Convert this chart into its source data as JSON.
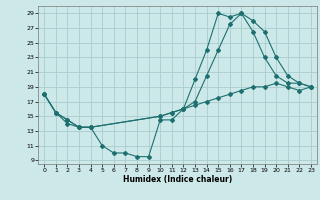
{
  "xlabel": "Humidex (Indice chaleur)",
  "bg_color": "#cde8e8",
  "grid_color": "#a8cccc",
  "line_color": "#1e7070",
  "xlim": [
    -0.5,
    23.5
  ],
  "ylim": [
    8.5,
    30
  ],
  "xticks": [
    0,
    1,
    2,
    3,
    4,
    5,
    6,
    7,
    8,
    9,
    10,
    11,
    12,
    13,
    14,
    15,
    16,
    17,
    18,
    19,
    20,
    21,
    22,
    23
  ],
  "yticks": [
    9,
    11,
    13,
    15,
    17,
    19,
    21,
    23,
    25,
    27,
    29
  ],
  "line1_x": [
    0,
    1,
    2,
    3,
    4,
    5,
    6,
    7,
    8,
    9,
    10,
    11,
    12,
    13,
    14,
    15,
    16,
    17,
    18,
    19,
    20,
    21,
    22,
    23
  ],
  "line1_y": [
    18,
    15.5,
    14,
    13.5,
    13.5,
    11,
    10,
    10,
    9.5,
    9.5,
    14.5,
    14.5,
    16,
    20,
    24,
    29,
    28.5,
    29,
    26.5,
    23,
    20.5,
    19.5,
    19.5,
    19
  ],
  "line2_x": [
    0,
    1,
    2,
    3,
    4,
    10,
    11,
    12,
    13,
    14,
    15,
    16,
    17,
    18,
    19,
    20,
    21,
    22,
    23
  ],
  "line2_y": [
    18,
    15.5,
    14.5,
    13.5,
    13.5,
    15,
    15.5,
    16,
    16.5,
    17,
    17.5,
    18,
    18.5,
    19,
    19,
    19.5,
    19,
    18.5,
    19
  ],
  "line3_x": [
    0,
    1,
    2,
    3,
    4,
    10,
    11,
    12,
    13,
    14,
    15,
    16,
    17,
    18,
    19,
    20,
    21,
    22,
    23
  ],
  "line3_y": [
    18,
    15.5,
    14.5,
    13.5,
    13.5,
    15,
    15.5,
    16,
    17,
    20.5,
    24,
    27.5,
    29,
    28,
    26.5,
    23,
    20.5,
    19.5,
    19
  ]
}
